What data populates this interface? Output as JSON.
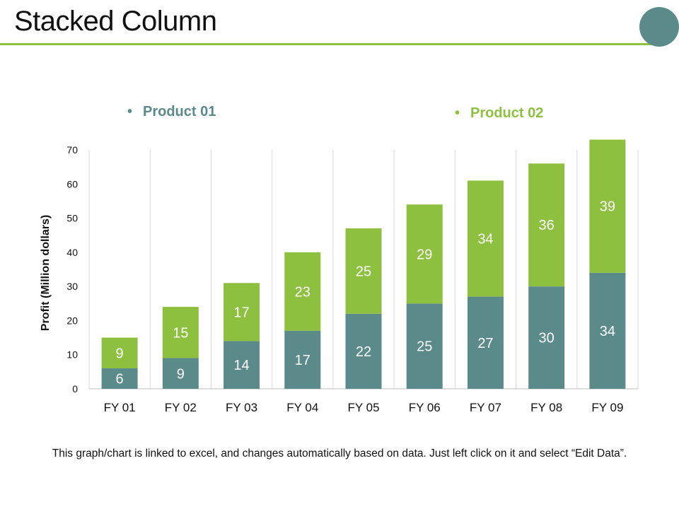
{
  "slide": {
    "title": "Stacked Column",
    "footnote": "This graph/chart is linked to excel, and changes automatically based on data. Just left click on it and select “Edit Data”.",
    "accent_color": "#8dc03f",
    "circle_color": "#5b8a8b"
  },
  "legend": {
    "bullet": "•",
    "items": [
      {
        "label": "Product 01",
        "color": "#5b8a8b"
      },
      {
        "label": "Product 02",
        "color": "#8dc03f"
      }
    ]
  },
  "chart_data": {
    "type": "bar",
    "stacked": true,
    "categories": [
      "FY 01",
      "FY 02",
      "FY 03",
      "FY 04",
      "FY 05",
      "FY 06",
      "FY 07",
      "FY 08",
      "FY 09"
    ],
    "series": [
      {
        "name": "Product 01",
        "color": "#5b8a8b",
        "values": [
          6,
          9,
          14,
          17,
          22,
          25,
          27,
          30,
          34
        ]
      },
      {
        "name": "Product 02",
        "color": "#8dc03f",
        "values": [
          9,
          15,
          17,
          23,
          25,
          29,
          34,
          36,
          39
        ]
      }
    ],
    "ylabel": "Profit  (Million dollars)",
    "xlabel": "",
    "ylim": [
      0,
      70
    ],
    "yticks": [
      0,
      10,
      20,
      30,
      40,
      50,
      60,
      70
    ],
    "grid": "vertical",
    "legend_position": "top"
  }
}
